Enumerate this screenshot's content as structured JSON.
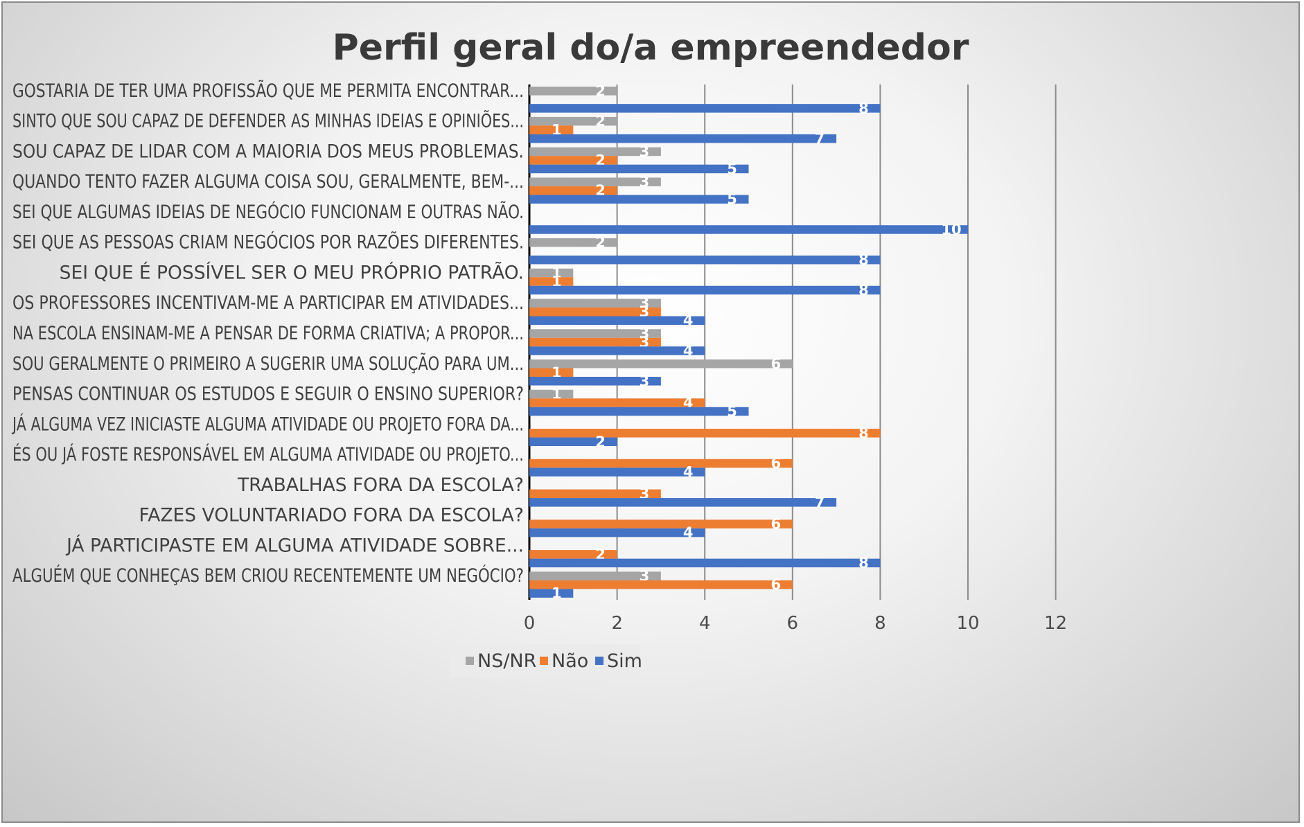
{
  "chart_data": {
    "type": "bar",
    "orientation": "horizontal",
    "title": "Perfil geral do/a empreendedor",
    "xlabel": "",
    "ylabel": "",
    "xlim": [
      0,
      12
    ],
    "x_ticks": [
      "0",
      "2",
      "4",
      "6",
      "8",
      "10",
      "12"
    ],
    "grid": true,
    "legend_position": "bottom",
    "categories": [
      "GOSTARIA DE TER UMA PROFISSÃO QUE ME PERMITA ENCONTRAR...",
      "SINTO QUE SOU CAPAZ DE DEFENDER AS MINHAS IDEIAS E OPINIÕES...",
      "SOU CAPAZ DE LIDAR COM A MAIORIA DOS MEUS PROBLEMAS.",
      "QUANDO TENTO FAZER ALGUMA COISA SOU, GERALMENTE, BEM-...",
      "SEI QUE ALGUMAS IDEIAS DE NEGÓCIO FUNCIONAM E OUTRAS NÃO.",
      "SEI QUE AS PESSOAS CRIAM NEGÓCIOS POR RAZÕES DIFERENTES.",
      "SEI QUE É POSSÍVEL SER O MEU PRÓPRIO PATRÃO.",
      "OS PROFESSORES INCENTIVAM-ME A PARTICIPAR EM ATIVIDADES...",
      "NA ESCOLA ENSINAM-ME A PENSAR DE FORMA CRIATIVA; A PROPOR...",
      "SOU GERALMENTE O PRIMEIRO A SUGERIR UMA SOLUÇÃO PARA UM...",
      "PENSAS CONTINUAR OS ESTUDOS E SEGUIR O ENSINO SUPERIOR?",
      "JÁ ALGUMA VEZ INICIASTE ALGUMA ATIVIDADE OU PROJETO FORA DA...",
      "ÉS OU JÁ FOSTE RESPONSÁVEL EM ALGUMA ATIVIDADE OU PROJETO...",
      "TRABALHAS FORA DA ESCOLA?",
      "FAZES VOLUNTARIADO FORA DA ESCOLA?",
      "JÁ PARTICIPASTE EM ALGUMA ATIVIDADE SOBRE...",
      "ALGUÉM QUE CONHEÇAS BEM CRIOU RECENTEMENTE UM NEGÓCIO?"
    ],
    "series": [
      {
        "name": "NS/NR",
        "color": "#a5a5a5",
        "values": [
          2,
          2,
          3,
          3,
          null,
          2,
          1,
          3,
          3,
          6,
          1,
          null,
          null,
          null,
          null,
          null,
          3
        ]
      },
      {
        "name": "Não",
        "color": "#ed7d31",
        "values": [
          null,
          1,
          2,
          2,
          null,
          null,
          1,
          3,
          3,
          1,
          4,
          8,
          6,
          3,
          6,
          2,
          6
        ]
      },
      {
        "name": "Sim",
        "color": "#4472c4",
        "values": [
          8,
          7,
          5,
          5,
          10,
          8,
          8,
          4,
          4,
          3,
          5,
          2,
          4,
          7,
          4,
          8,
          1
        ]
      }
    ]
  }
}
